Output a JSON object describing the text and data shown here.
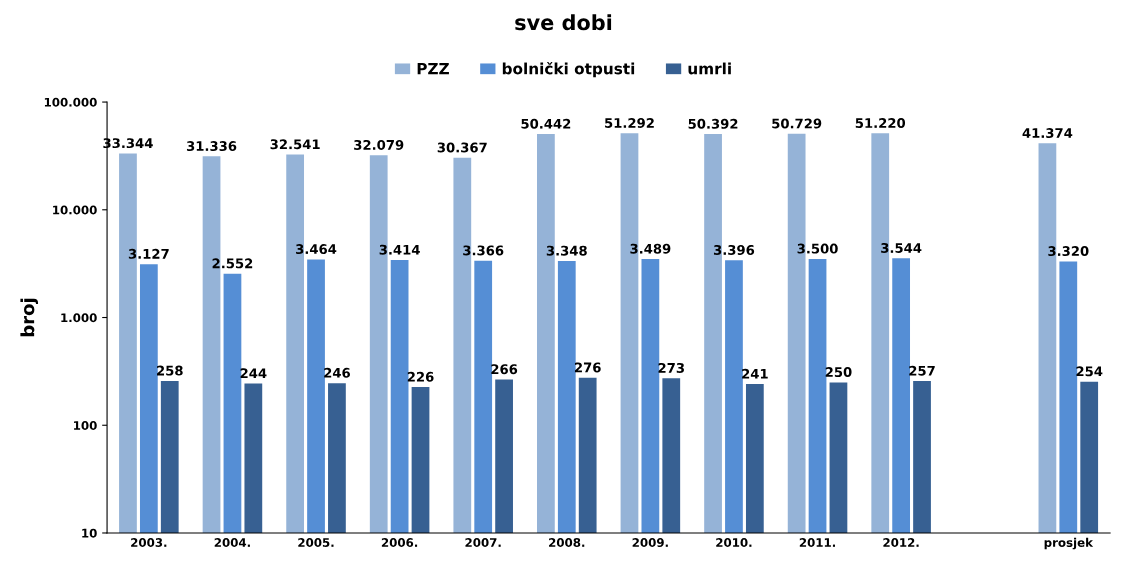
{
  "chart_data": {
    "type": "bar",
    "title": "sve dobi",
    "ylabel": "broj",
    "log": "y",
    "legend": "top",
    "grid": false,
    "categories": [
      "2003.",
      "2004.",
      "2005.",
      "2006.",
      "2007.",
      "2008.",
      "2009.",
      "2010.",
      "2011.",
      "2012.",
      null,
      "prosjek"
    ],
    "ylim": [
      10,
      100000
    ],
    "yticks": [
      {
        "value": 10,
        "label": "10"
      },
      {
        "value": 100,
        "label": "100"
      },
      {
        "value": 1000,
        "label": "1.000"
      },
      {
        "value": 10000,
        "label": "10.000"
      },
      {
        "value": 100000,
        "label": "100.000"
      }
    ],
    "series": [
      {
        "name": "PZZ",
        "color": "#95b3d7",
        "values": [
          33344,
          31336,
          32541,
          32079,
          30367,
          50442,
          51292,
          50392,
          50729,
          51220,
          null,
          41374
        ],
        "value_labels": [
          "33.344",
          "31.336",
          "32.541",
          "32.079",
          "30.367",
          "50.442",
          "51.292",
          "50.392",
          "50.729",
          "51.220",
          null,
          "41.374"
        ]
      },
      {
        "name": "bolnički otpusti",
        "color": "#558ed5",
        "values": [
          3127,
          2552,
          3464,
          3414,
          3366,
          3348,
          3489,
          3396,
          3500,
          3544,
          null,
          3320
        ],
        "value_labels": [
          "3.127",
          "2.552",
          "3.464",
          "3.414",
          "3.366",
          "3.348",
          "3.489",
          "3.396",
          "3.500",
          "3.544",
          null,
          "3.320"
        ]
      },
      {
        "name": "umrli",
        "color": "#376092",
        "values": [
          258,
          244,
          246,
          226,
          266,
          276,
          273,
          241,
          250,
          257,
          null,
          254
        ],
        "value_labels": [
          "258",
          "244",
          "246",
          "226",
          "266",
          "276",
          "273",
          "241",
          "250",
          "257",
          null,
          "254"
        ]
      }
    ]
  }
}
